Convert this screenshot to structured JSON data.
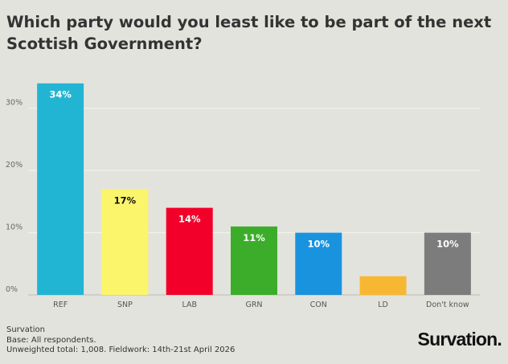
{
  "chart_data": {
    "type": "bar",
    "title": "Which party would you least like to be part of the next Scottish Government?",
    "categories": [
      "REF",
      "SNP",
      "LAB",
      "GRN",
      "CON",
      "LD",
      "Don't know"
    ],
    "values": [
      34,
      17,
      14,
      11,
      10,
      3,
      10
    ],
    "data_labels": [
      "34%",
      "17%",
      "14%",
      "11%",
      "10%",
      "",
      "10%"
    ],
    "colors": [
      "#22b5d3",
      "#fbf56b",
      "#f20029",
      "#3cad2a",
      "#1a93df",
      "#f8b733",
      "#7c7c7c"
    ],
    "label_colors": [
      "#ffffff",
      "#111111",
      "#ffffff",
      "#ffffff",
      "#ffffff",
      "#ffffff",
      "#ffffff"
    ],
    "yticks": [
      0,
      10,
      20,
      30
    ],
    "ytick_labels": [
      "0%",
      "10%",
      "20%",
      "30%"
    ],
    "ylim": [
      0,
      35
    ],
    "grid": true,
    "legend": "none"
  },
  "footer": {
    "source": "Survation",
    "base": "Base: All respondents.",
    "fieldwork": "Unweighted total: 1,008. Fieldwork: 14th-21st April 2026"
  },
  "logo": "Survation."
}
